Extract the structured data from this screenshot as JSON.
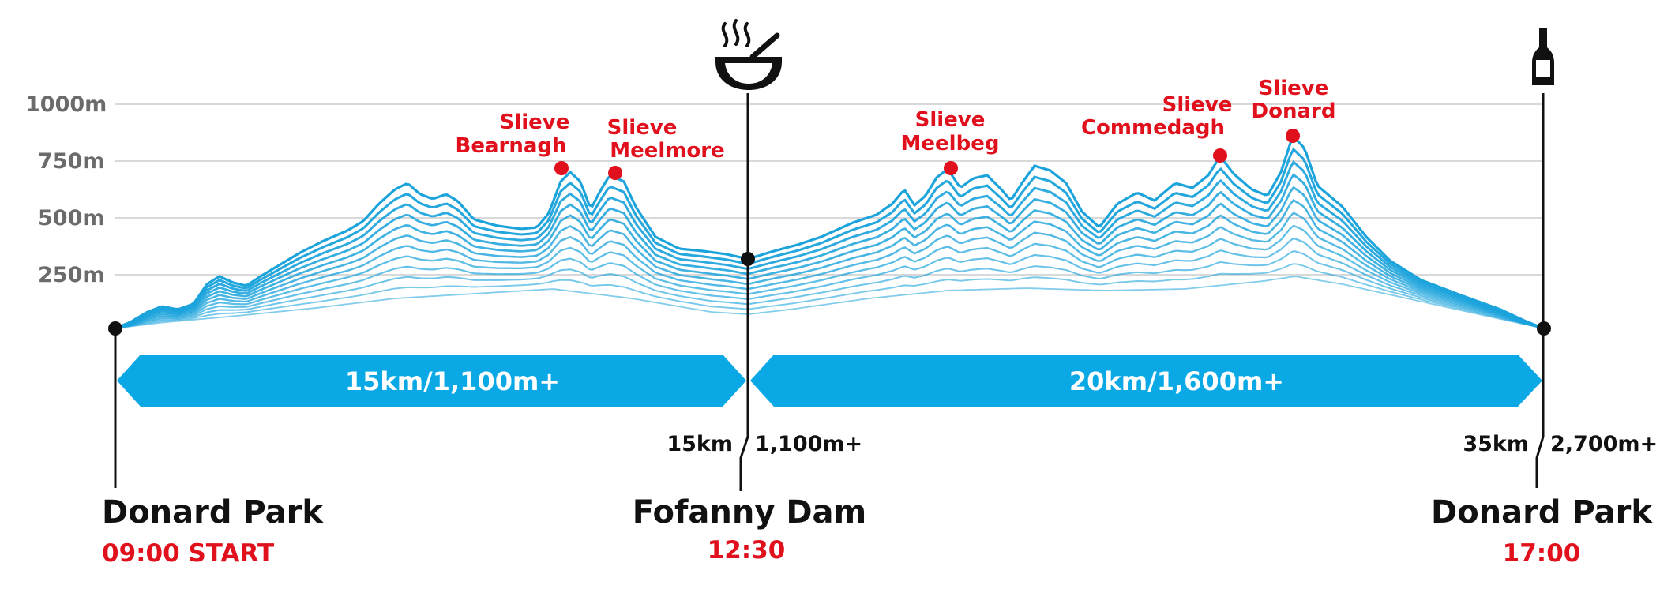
{
  "axis": {
    "ticks": [
      {
        "label": "1000m",
        "value": 1000
      },
      {
        "label": "750m",
        "value": 750
      },
      {
        "label": "500m",
        "value": 500
      },
      {
        "label": "250m",
        "value": 250
      }
    ]
  },
  "peaks": [
    {
      "line1": "Slieve",
      "line2": "Bearnagh"
    },
    {
      "line1": "Slieve",
      "line2": "Meelmore"
    },
    {
      "line1": "Slieve",
      "line2": "Meelbeg"
    },
    {
      "line1": "Slieve",
      "line2": "Commedagh"
    },
    {
      "line1": "Slieve",
      "line2": "Donard"
    }
  ],
  "segments": [
    {
      "label": "15km/1,100m+"
    },
    {
      "label": "20km/1,600m+"
    }
  ],
  "checkpoints": [
    {
      "name": "Donard Park",
      "time": "09:00 START",
      "distance": "",
      "climb": "",
      "icon": ""
    },
    {
      "name": "Fofanny Dam",
      "time": "12:30",
      "distance": "15km",
      "climb": "1,100m+",
      "icon": "soup-bowl-icon"
    },
    {
      "name": "Donard Park",
      "time": "17:00",
      "distance": "35km",
      "climb": "2,700m+",
      "icon": "bottle-icon"
    }
  ],
  "colors": {
    "profile": "#1ba3dc",
    "segment": "#0aa9e6",
    "peak": "#e0101c",
    "grid": "#d9d9d9",
    "axisText": "#6b6b6b"
  }
}
